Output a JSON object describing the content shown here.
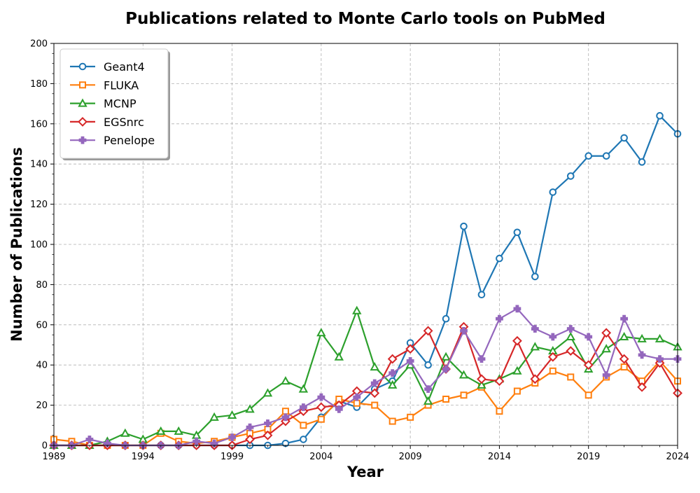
{
  "chart_data": {
    "type": "line",
    "title": "Publications related to Monte Carlo tools on PubMed",
    "xlabel": "Year",
    "ylabel": "Number of Publications",
    "xlim": [
      1989,
      2024
    ],
    "ylim": [
      0,
      200
    ],
    "x_ticks": [
      1989,
      1994,
      1999,
      2004,
      2009,
      2014,
      2019,
      2024
    ],
    "y_ticks": [
      0,
      20,
      40,
      60,
      80,
      100,
      120,
      140,
      160,
      180,
      200
    ],
    "grid": true,
    "legend_position": "top-left",
    "x": [
      1989,
      1990,
      1991,
      1992,
      1993,
      1994,
      1995,
      1996,
      1997,
      1998,
      1999,
      2000,
      2001,
      2002,
      2003,
      2004,
      2005,
      2006,
      2007,
      2008,
      2009,
      2010,
      2011,
      2012,
      2013,
      2014,
      2015,
      2016,
      2017,
      2018,
      2019,
      2020,
      2021,
      2022,
      2023,
      2024
    ],
    "series": [
      {
        "name": "Geant4",
        "color": "#1f77b4",
        "marker": "circle",
        "values": [
          0,
          0,
          0,
          0,
          0,
          0,
          0,
          0,
          0,
          0,
          0,
          0,
          0,
          1,
          3,
          14,
          22,
          19,
          28,
          32,
          51,
          40,
          63,
          109,
          75,
          93,
          106,
          84,
          126,
          134,
          144,
          144,
          153,
          141,
          164,
          155
        ]
      },
      {
        "name": "FLUKA",
        "color": "#ff7f0e",
        "marker": "square",
        "values": [
          3,
          2,
          0,
          0,
          0,
          0,
          6,
          2,
          1,
          2,
          4,
          6,
          8,
          17,
          10,
          13,
          23,
          21,
          20,
          12,
          14,
          20,
          23,
          25,
          29,
          17,
          27,
          31,
          37,
          34,
          25,
          34,
          39,
          32,
          42,
          32
        ]
      },
      {
        "name": "MCNP",
        "color": "#2ca02c",
        "marker": "triangle",
        "values": [
          0,
          0,
          0,
          2,
          6,
          3,
          7,
          7,
          5,
          14,
          15,
          18,
          26,
          32,
          28,
          56,
          44,
          67,
          39,
          30,
          40,
          22,
          44,
          35,
          30,
          33,
          37,
          49,
          47,
          54,
          38,
          48,
          54,
          53,
          53,
          49
        ]
      },
      {
        "name": "EGSnrc",
        "color": "#d62728",
        "marker": "diamond",
        "values": [
          0,
          0,
          0,
          0,
          0,
          0,
          0,
          0,
          0,
          0,
          0,
          3,
          5,
          12,
          17,
          19,
          20,
          27,
          26,
          43,
          48,
          57,
          38,
          59,
          33,
          32,
          52,
          33,
          44,
          47,
          40,
          56,
          43,
          29,
          41,
          26
        ]
      },
      {
        "name": "Penelope",
        "color": "#9467bd",
        "marker": "plus",
        "values": [
          0,
          0,
          3,
          1,
          0,
          0,
          0,
          0,
          2,
          1,
          4,
          9,
          11,
          14,
          19,
          24,
          18,
          24,
          31,
          36,
          42,
          28,
          38,
          57,
          43,
          63,
          68,
          58,
          54,
          58,
          54,
          35,
          63,
          45,
          43,
          43
        ]
      }
    ]
  }
}
